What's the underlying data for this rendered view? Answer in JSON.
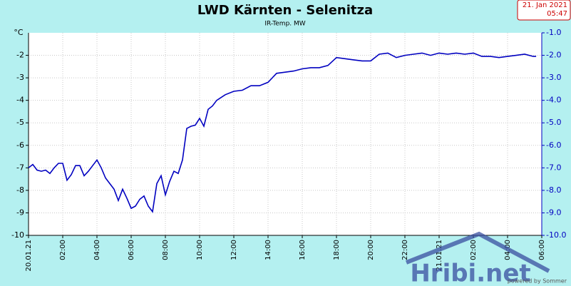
{
  "chart_data": {
    "type": "line",
    "title": "LWD Kärnten - Selenitza",
    "subtitle": "IR-Temp. MW",
    "timestamp": [
      "21. Jan 2021",
      "05:47"
    ],
    "ylabel": "°C",
    "watermark": "Hribi.net",
    "credit": "powered by Sommer",
    "grid": true,
    "xlim": [
      0,
      30
    ],
    "ylim": [
      -10,
      -1
    ],
    "y2lim": [
      -10,
      -1
    ],
    "xticks": [
      {
        "value": 0,
        "label": "20.01.21"
      },
      {
        "value": 2,
        "label": "02:00"
      },
      {
        "value": 4,
        "label": "04:00"
      },
      {
        "value": 6,
        "label": "06:00"
      },
      {
        "value": 8,
        "label": "08:00"
      },
      {
        "value": 10,
        "label": "10:00"
      },
      {
        "value": 12,
        "label": "12:00"
      },
      {
        "value": 14,
        "label": "14:00"
      },
      {
        "value": 16,
        "label": "16:00"
      },
      {
        "value": 18,
        "label": "18:00"
      },
      {
        "value": 20,
        "label": "20:00"
      },
      {
        "value": 22,
        "label": "22:00"
      },
      {
        "value": 24,
        "label": "21.01.21"
      },
      {
        "value": 26,
        "label": "02:00"
      },
      {
        "value": 28,
        "label": "04:00"
      },
      {
        "value": 30,
        "label": "06:00"
      }
    ],
    "yticks": [
      -2,
      -3,
      -4,
      -5,
      -6,
      -7,
      -8,
      -9,
      -10
    ],
    "y2ticks": [
      {
        "value": -1,
        "label": "-1.0"
      },
      {
        "value": -2,
        "label": "-2.0"
      },
      {
        "value": -3,
        "label": "-3.0"
      },
      {
        "value": -4,
        "label": "-4.0"
      },
      {
        "value": -5,
        "label": "-5.0"
      },
      {
        "value": -6,
        "label": "-6.0"
      },
      {
        "value": -7,
        "label": "-7.0"
      },
      {
        "value": -8,
        "label": "-8.0"
      },
      {
        "value": -9,
        "label": "-9.0"
      },
      {
        "value": -10,
        "label": "-10.0"
      }
    ],
    "x": [
      0,
      0.25,
      0.5,
      0.75,
      1,
      1.25,
      1.5,
      1.75,
      2,
      2.25,
      2.5,
      2.75,
      3,
      3.25,
      3.5,
      3.75,
      4,
      4.25,
      4.5,
      4.75,
      5,
      5.25,
      5.5,
      5.75,
      6,
      6.25,
      6.5,
      6.75,
      7,
      7.25,
      7.5,
      7.75,
      8,
      8.25,
      8.5,
      8.75,
      9,
      9.25,
      9.5,
      9.75,
      10,
      10.25,
      10.5,
      10.75,
      11,
      11.5,
      12,
      12.5,
      13,
      13.5,
      14,
      14.5,
      15,
      15.5,
      16,
      16.5,
      17,
      17.5,
      18,
      18.5,
      19,
      19.5,
      20,
      20.5,
      21,
      21.5,
      22,
      22.5,
      23,
      23.5,
      24,
      24.5,
      25,
      25.5,
      26,
      26.5,
      27,
      27.5,
      28,
      28.5,
      29,
      29.5,
      29.67
    ],
    "series": [
      {
        "name": "IR-Temp. MW",
        "color": "#0000c0",
        "values": [
          -7.0,
          -6.85,
          -7.1,
          -7.15,
          -7.1,
          -7.25,
          -7.0,
          -6.8,
          -6.8,
          -7.55,
          -7.3,
          -6.9,
          -6.9,
          -7.35,
          -7.15,
          -6.9,
          -6.65,
          -7.0,
          -7.45,
          -7.7,
          -7.95,
          -8.45,
          -7.95,
          -8.35,
          -8.8,
          -8.7,
          -8.4,
          -8.25,
          -8.7,
          -8.95,
          -7.7,
          -7.35,
          -8.2,
          -7.6,
          -7.15,
          -7.25,
          -6.65,
          -5.25,
          -5.15,
          -5.1,
          -4.8,
          -5.15,
          -4.4,
          -4.25,
          -4.0,
          -3.75,
          -3.6,
          -3.55,
          -3.35,
          -3.35,
          -3.2,
          -2.8,
          -2.75,
          -2.7,
          -2.6,
          -2.55,
          -2.55,
          -2.45,
          -2.1,
          -2.15,
          -2.2,
          -2.25,
          -2.25,
          -1.95,
          -1.9,
          -2.1,
          -2.0,
          -1.95,
          -1.9,
          -2.0,
          -1.9,
          -1.95,
          -1.9,
          -1.95,
          -1.9,
          -2.05,
          -2.05,
          -2.1,
          -2.05,
          -2.0,
          -1.95,
          -2.05,
          -2.05
        ]
      }
    ]
  }
}
